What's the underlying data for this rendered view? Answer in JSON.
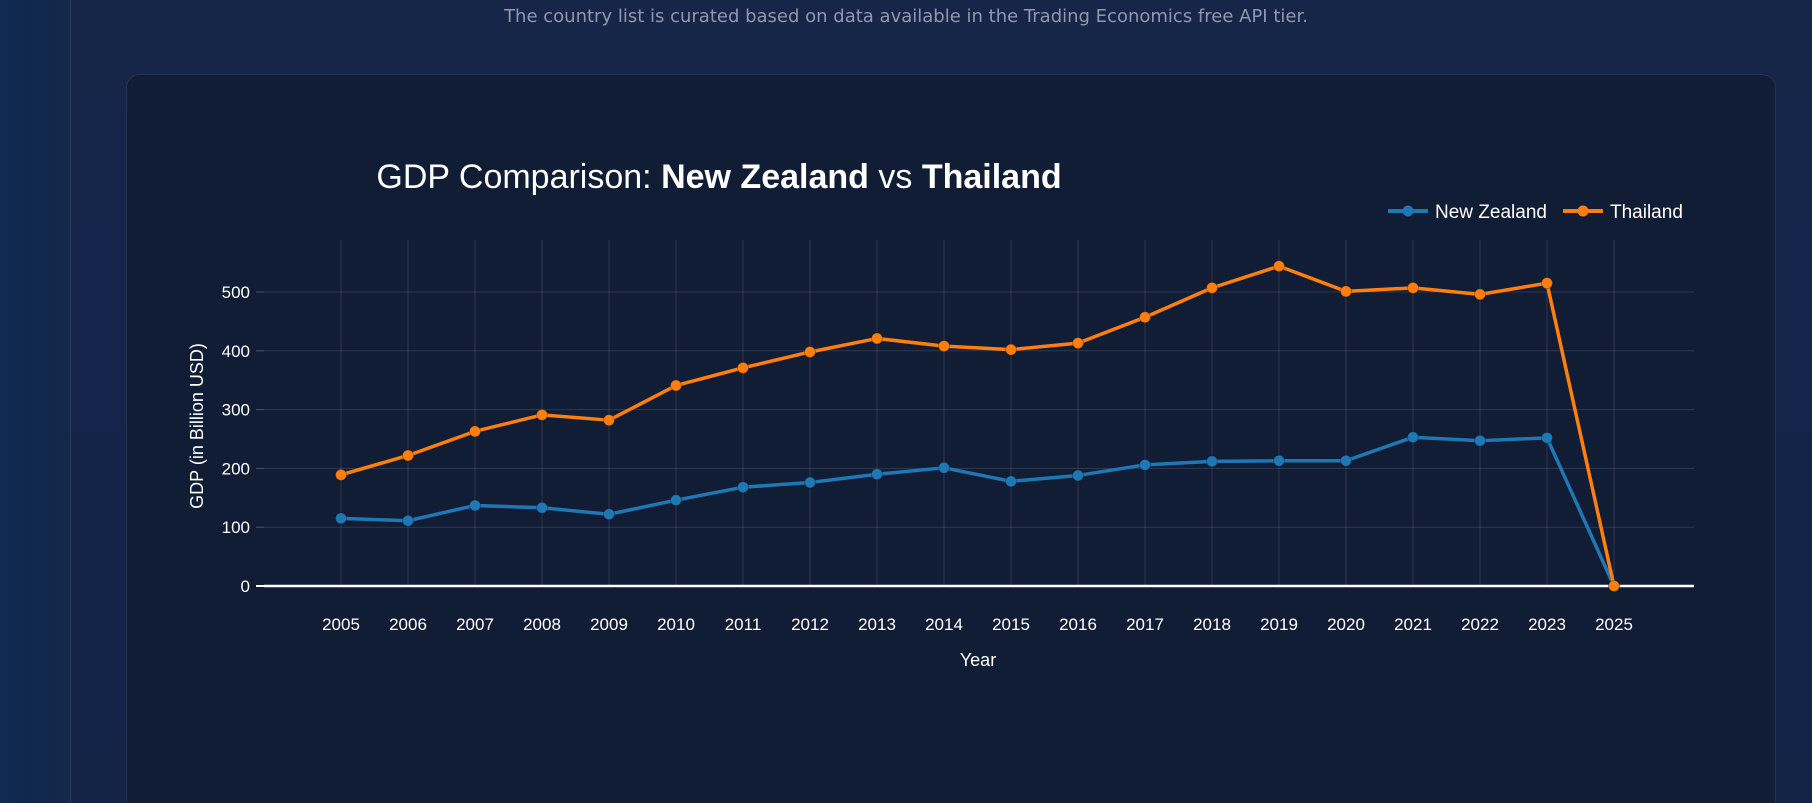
{
  "page": {
    "note": "The country list is curated based on data available in the Trading Economics free API tier."
  },
  "chart_data": {
    "type": "line",
    "title": {
      "prefix": "GDP Comparison: ",
      "country_a": "New Zealand",
      "connector": " vs ",
      "country_b": "Thailand"
    },
    "xlabel": "Year",
    "ylabel": "GDP (in Billion USD)",
    "categories": [
      "2005",
      "2006",
      "2007",
      "2008",
      "2009",
      "2010",
      "2011",
      "2012",
      "2013",
      "2014",
      "2015",
      "2016",
      "2017",
      "2018",
      "2019",
      "2020",
      "2021",
      "2022",
      "2023",
      "2025"
    ],
    "y_ticks": [
      0,
      100,
      200,
      300,
      400,
      500
    ],
    "ylim": [
      0,
      580
    ],
    "grid": true,
    "legend_position": "top-right",
    "series": [
      {
        "name": "New Zealand",
        "color": "#1f77b4",
        "values": [
          115,
          111,
          137,
          133,
          122,
          146,
          168,
          176,
          190,
          201,
          178,
          188,
          206,
          212,
          213,
          213,
          253,
          247,
          252,
          0
        ]
      },
      {
        "name": "Thailand",
        "color": "#ff7f0e",
        "values": [
          189,
          222,
          263,
          291,
          282,
          341,
          371,
          398,
          421,
          408,
          402,
          413,
          457,
          507,
          544,
          501,
          507,
          496,
          515,
          0
        ]
      }
    ]
  }
}
